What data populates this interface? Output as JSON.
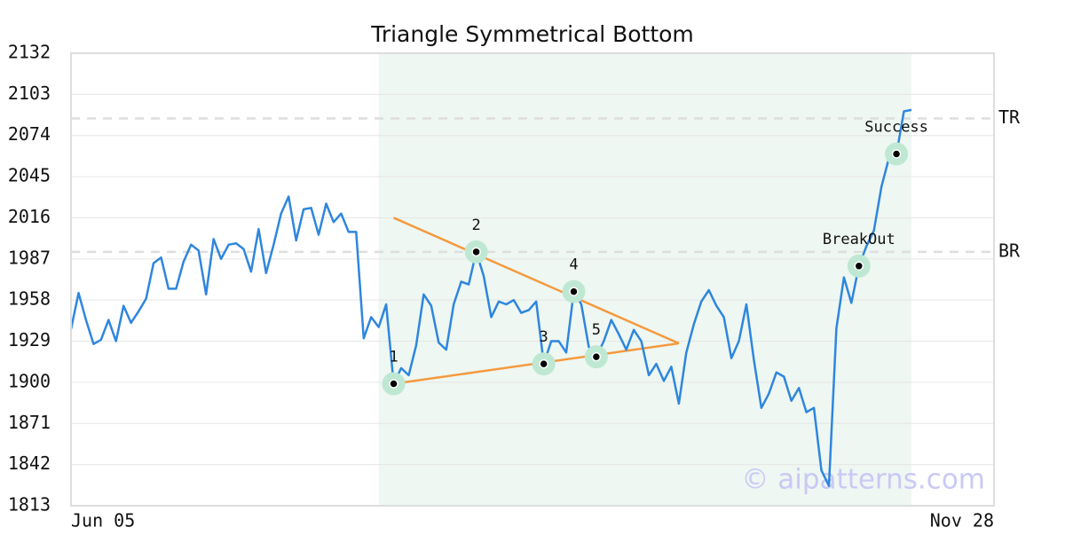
{
  "chart_data": {
    "type": "line",
    "title": "Triangle Symmetrical Bottom",
    "watermark": "© aipatterns.com",
    "categories": [
      "Jun 05",
      null,
      null,
      null,
      null,
      null,
      null,
      null,
      null,
      null,
      null,
      null,
      null,
      null,
      null,
      null,
      null,
      null,
      null,
      null,
      null,
      null,
      null,
      null,
      null,
      null,
      null,
      null,
      null,
      null,
      null,
      null,
      null,
      null,
      null,
      null,
      null,
      null,
      null,
      null,
      null,
      null,
      null,
      null,
      null,
      null,
      null,
      null,
      null,
      null,
      null,
      null,
      null,
      null,
      null,
      null,
      null,
      null,
      null,
      null,
      null,
      null,
      null,
      null,
      null,
      null,
      null,
      null,
      null,
      null,
      null,
      null,
      null,
      null,
      null,
      null,
      null,
      null,
      null,
      null,
      null,
      null,
      null,
      null,
      null,
      null,
      null,
      null,
      null,
      null,
      null,
      null,
      null,
      null,
      null,
      null,
      null,
      null,
      null,
      null,
      null,
      null,
      null,
      null,
      null,
      null,
      null,
      null,
      null,
      null,
      null,
      null,
      null,
      null,
      null,
      null,
      null,
      null,
      null,
      null,
      null,
      null,
      null,
      "Nov 28"
    ],
    "series": [
      {
        "color": "#2e86de",
        "values": [
          1937.5,
          1963,
          1944,
          1927,
          1930,
          1944,
          1929,
          1954,
          1942,
          1950,
          1959,
          1984,
          1988,
          1966,
          1966,
          1985,
          1997,
          1993,
          1962,
          2001,
          1987,
          1997,
          1998,
          1994,
          1978,
          2008,
          1977,
          1997,
          2019,
          2031,
          2000,
          2022,
          2023,
          2004,
          2026,
          2013,
          2019,
          2006,
          2006,
          1931,
          1946,
          1939,
          1955,
          1899,
          1910,
          1905,
          1926,
          1962,
          1954,
          1928,
          1923,
          1955,
          1971,
          1969,
          1992,
          1975,
          1946,
          1957,
          1955,
          1958,
          1949,
          1951,
          1957,
          1913,
          1929,
          1929,
          1921,
          1964,
          1955,
          1925,
          1918,
          1929,
          1944,
          1934,
          1923,
          1937,
          1929,
          1905,
          1913,
          1901,
          1911,
          1885,
          1921,
          1941,
          1957,
          1965,
          1954,
          1946,
          1917,
          1929,
          1955,
          1916,
          1882,
          1892,
          1907,
          1904,
          1887,
          1896,
          1879,
          1882,
          1838,
          1827,
          1938,
          1974,
          1956,
          1982,
          1996,
          2007,
          2038,
          2058,
          2061,
          2091,
          2092,
          null,
          null,
          null,
          null,
          null,
          null,
          null,
          null,
          null,
          null,
          null
        ]
      }
    ],
    "ylim": [
      1813,
      2132
    ],
    "yticks": [
      1813,
      1842,
      1871,
      1900,
      1929,
      1958,
      1987,
      2016,
      2045,
      2074,
      2103,
      2132
    ],
    "grid": true,
    "highlight": {
      "from": 41,
      "to": 112,
      "color": "#eef7f2"
    },
    "reference_lines": [
      {
        "label": "TR",
        "value": 2086
      },
      {
        "label": "BR",
        "value": 1992
      }
    ],
    "triangle": {
      "color": "#f5993d",
      "upper": [
        [
          43,
          2016
        ],
        [
          81,
          1927.5
        ]
      ],
      "lower": [
        [
          43,
          1899
        ],
        [
          81,
          1927.5
        ]
      ]
    },
    "annotations": [
      {
        "label": "1",
        "index": 43
      },
      {
        "label": "2",
        "index": 54
      },
      {
        "label": "3",
        "index": 63
      },
      {
        "label": "4",
        "index": 67
      },
      {
        "label": "5",
        "index": 70
      },
      {
        "label": "BreakOut",
        "index": 105
      },
      {
        "label": "Success",
        "index": 110
      }
    ]
  }
}
